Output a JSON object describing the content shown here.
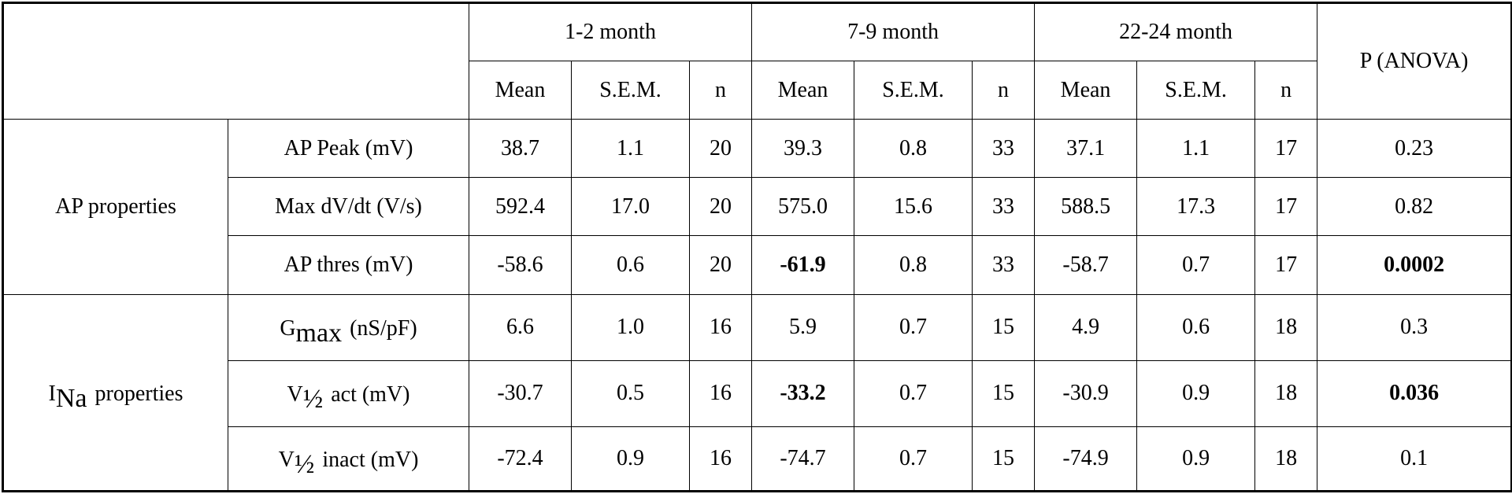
{
  "header": {
    "groups": [
      "1-2 month",
      "7-9 month",
      "22-24 month"
    ],
    "p_col": "P (ANOVA)",
    "sub": [
      "Mean",
      "S.E.M.",
      "n"
    ]
  },
  "sections": [
    {
      "label": "AP properties",
      "rows": [
        {
          "label": "AP Peak (mV)",
          "c": [
            "38.7",
            "1.1",
            "20",
            "39.3",
            "0.8",
            "33",
            "37.1",
            "1.1",
            "17"
          ],
          "p": "0.23"
        },
        {
          "label": "Max dV/dt (V/s)",
          "c": [
            "592.4",
            "17.0",
            "20",
            "575.0",
            "15.6",
            "33",
            "588.5",
            "17.3",
            "17"
          ],
          "p": "0.82"
        },
        {
          "label": "AP thres (mV)",
          "c": [
            "-58.6",
            "0.6",
            "20",
            "-61.9",
            "0.8",
            "33",
            "-58.7",
            "0.7",
            "17"
          ],
          "p": "0.0002"
        }
      ]
    },
    {
      "label_main": "I",
      "label_sub": "Na",
      "label_rest": "properties",
      "rows": [
        {
          "main": "G",
          "sub": "max",
          "rest": "(nS/pF)",
          "c": [
            "6.6",
            "1.0",
            "16",
            "5.9",
            "0.7",
            "15",
            "4.9",
            "0.6",
            "18"
          ],
          "p": "0.3"
        },
        {
          "main": "V",
          "sub": "½",
          "rest": "act (mV)",
          "c": [
            "-30.7",
            "0.5",
            "16",
            "-33.2",
            "0.7",
            "15",
            "-30.9",
            "0.9",
            "18"
          ],
          "p": "0.036"
        },
        {
          "main": "V",
          "sub": "½",
          "rest": "inact (mV)",
          "c": [
            "-72.4",
            "0.9",
            "16",
            "-74.7",
            "0.7",
            "15",
            "-74.9",
            "0.9",
            "18"
          ],
          "p": "0.1"
        }
      ]
    }
  ]
}
